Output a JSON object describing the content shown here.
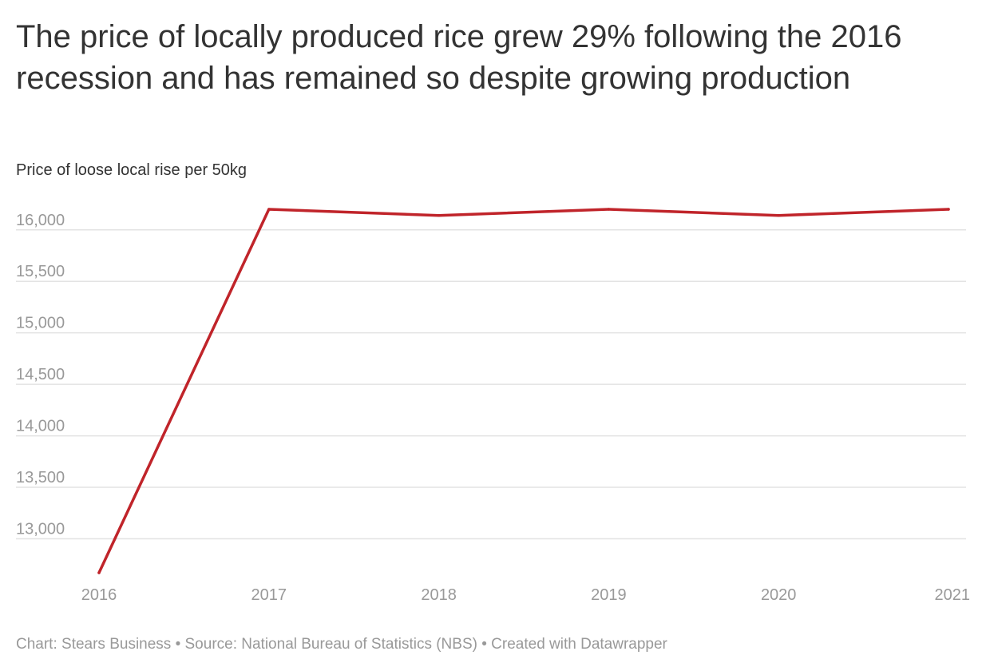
{
  "chart_data": {
    "type": "line",
    "title": "The price of locally produced rice grew 29% following the 2016 recession and has remained so despite growing production",
    "subtitle": "Price of loose local rise per 50kg",
    "x": [
      "2016",
      "2017",
      "2018",
      "2019",
      "2020",
      "2021"
    ],
    "series": [
      {
        "values": [
          12670,
          16200,
          16140,
          16200,
          16140,
          16200
        ]
      }
    ],
    "y_ticks": [
      13000,
      13500,
      14000,
      14500,
      15000,
      15500,
      16000
    ],
    "ylim": [
      12670,
      16200
    ],
    "grid": true,
    "line_color": "#c0242a",
    "footer": "Chart: Stears Business • Source: National Bureau of Statistics (NBS) • Created with Datawrapper"
  }
}
